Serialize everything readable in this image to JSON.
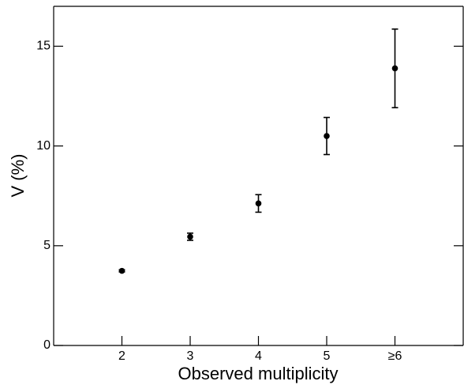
{
  "chart_data": {
    "type": "scatter",
    "xlabel": "Observed multiplicity",
    "ylabel": "V (%)",
    "x": [
      2,
      3,
      4,
      5,
      6
    ],
    "values": [
      3.74,
      5.45,
      7.12,
      10.5,
      13.89
    ],
    "errors": [
      0.05,
      0.18,
      0.44,
      0.93,
      1.97
    ],
    "color": "#000000",
    "xlim": [
      1,
      7
    ],
    "ylim": [
      0,
      17
    ],
    "xticks": [
      2,
      3,
      4,
      5,
      {
        "value": 6,
        "label": "≥6"
      }
    ],
    "yticks": [
      0,
      5,
      10,
      15
    ]
  }
}
